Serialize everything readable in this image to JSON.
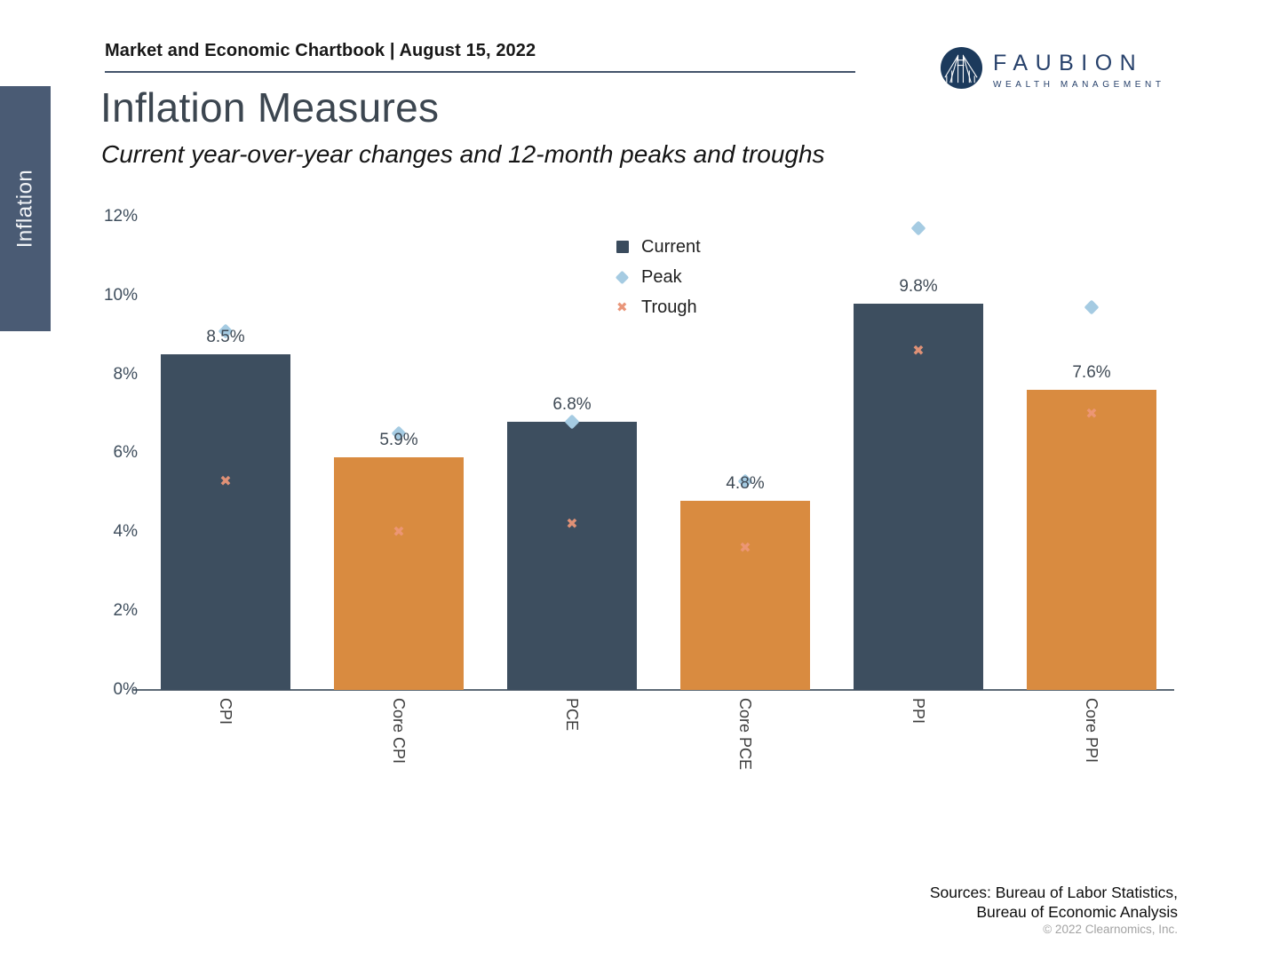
{
  "header": {
    "chartbook_line": "Market and Economic Chartbook | August 15, 2022"
  },
  "logo": {
    "name": "FAUBION",
    "tagline": "WEALTH MANAGEMENT",
    "brand_color": "#27416b",
    "circle_color": "#1c3a5c"
  },
  "sidebar": {
    "tab_label": "Inflation"
  },
  "page": {
    "title": "Inflation Measures",
    "subtitle": "Current year-over-year changes and 12-month peaks and troughs"
  },
  "legend": {
    "items": [
      {
        "label": "Current",
        "marker": "square",
        "color": "#3a4b5d"
      },
      {
        "label": "Peak",
        "marker": "diamond",
        "color": "#a5cbe2"
      },
      {
        "label": "Trough",
        "marker": "x",
        "color": "#e9967a"
      }
    ]
  },
  "chart_data": {
    "type": "bar",
    "title": "Inflation Measures",
    "categories": [
      "CPI",
      "Core CPI",
      "PCE",
      "Core PCE",
      "PPI",
      "Core PPI"
    ],
    "series": [
      {
        "name": "Current",
        "values": [
          8.5,
          5.9,
          6.8,
          4.8,
          9.8,
          7.6
        ]
      },
      {
        "name": "Peak",
        "values": [
          9.1,
          6.5,
          6.8,
          5.3,
          11.7,
          9.7
        ]
      },
      {
        "name": "Trough",
        "values": [
          5.3,
          4.0,
          4.2,
          3.6,
          8.6,
          7.0
        ]
      }
    ],
    "bar_labels": [
      "8.5%",
      "5.9%",
      "6.8%",
      "4.8%",
      "9.8%",
      "7.6%"
    ],
    "bar_colors": [
      "#3d4e5f",
      "#d98b40",
      "#3d4e5f",
      "#d98b40",
      "#3d4e5f",
      "#d98b40"
    ],
    "peak_color": "#a5cbe2",
    "trough_color": "#ee9779",
    "ylim": [
      0,
      12
    ],
    "yticks": [
      0,
      2,
      4,
      6,
      8,
      10,
      12
    ],
    "ytick_suffix": "%",
    "grid": false,
    "legend_position": "upper-center-right"
  },
  "footer": {
    "sources_line1": "Sources: Bureau of Labor Statistics,",
    "sources_line2": "Bureau of Economic Analysis",
    "copyright": "© 2022 Clearnomics, Inc."
  }
}
